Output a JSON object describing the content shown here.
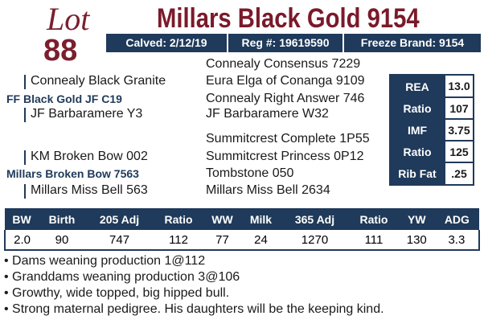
{
  "lot": {
    "label": "Lot",
    "number": "88"
  },
  "title": "Millars Black Gold 9154",
  "info_bar": [
    "Calved: 2/12/19",
    "Reg #: 19619590",
    "Freeze Brand: 9154"
  ],
  "pedigree": {
    "sire": {
      "name": "FF Black Gold JF C19",
      "sire": "Connealy Black Granite",
      "dam": "JF Barbaramere Y3",
      "sire_sire": "Connealy Consensus 7229",
      "sire_dam": "Eura Elga of Conanga 9109",
      "dam_sire": "Connealy Right Answer 746",
      "dam_dam": "JF Barbaramere W32"
    },
    "dam": {
      "name": "Millars Broken Bow 7563",
      "sire": "KM Broken Bow 002",
      "dam": "Millars Miss Bell 563",
      "sire_sire": "Summitcrest Complete 1P55",
      "sire_dam": "Summitcrest Princess 0P12",
      "dam_sire": "Tombstone 050",
      "dam_dam": "Millars Miss Bell 2634"
    }
  },
  "carcass_table": {
    "rows": [
      [
        "REA",
        "13.0"
      ],
      [
        "Ratio",
        "107"
      ],
      [
        "IMF",
        "3.75"
      ],
      [
        "Ratio",
        "125"
      ],
      [
        "Rib Fat",
        ".25"
      ]
    ]
  },
  "performance_table": {
    "headers": [
      "BW",
      "Birth",
      "205 Adj",
      "Ratio",
      "WW",
      "Milk",
      "365 Adj",
      "Ratio",
      "YW",
      "ADG"
    ],
    "values": [
      "2.0",
      "90",
      "747",
      "112",
      "77",
      "24",
      "1270",
      "111",
      "130",
      "3.3"
    ]
  },
  "notes": [
    "• Dams weaning production 1@112",
    "• Granddams weaning production 3@106",
    "• Growthy, wide topped, big hipped bull.",
    "• Strong maternal pedigree. His daughters will be the keeping kind."
  ]
}
